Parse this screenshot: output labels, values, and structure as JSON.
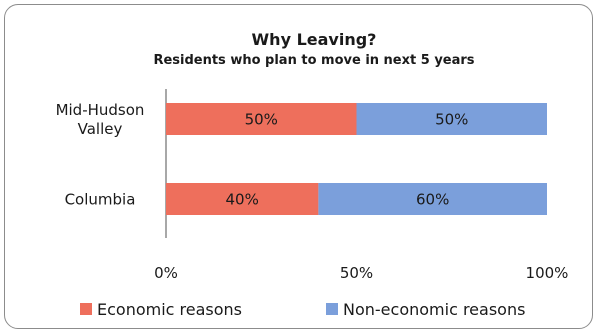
{
  "chart_data": {
    "type": "bar",
    "orientation": "horizontal",
    "stacked": true,
    "title": "Why Leaving?",
    "subtitle": "Residents who plan to move in next 5 years",
    "categories": [
      "Mid-Hudson Valley",
      "Columbia"
    ],
    "category_lines": [
      [
        "Mid-Hudson",
        "Valley"
      ],
      [
        "Columbia"
      ]
    ],
    "series": [
      {
        "name": "Economic reasons",
        "values": [
          50,
          40
        ],
        "labels": [
          "50%",
          "40%"
        ],
        "color": "#ee6f5c"
      },
      {
        "name": "Non-economic reasons",
        "values": [
          50,
          60
        ],
        "labels": [
          "50%",
          "60%"
        ],
        "color": "#7b9fdb"
      }
    ],
    "xlim": [
      0,
      100
    ],
    "xticks": [
      0,
      50,
      100
    ],
    "xtick_labels": [
      "0%",
      "50%",
      "100%"
    ],
    "grid": false,
    "legend_position": "bottom"
  }
}
